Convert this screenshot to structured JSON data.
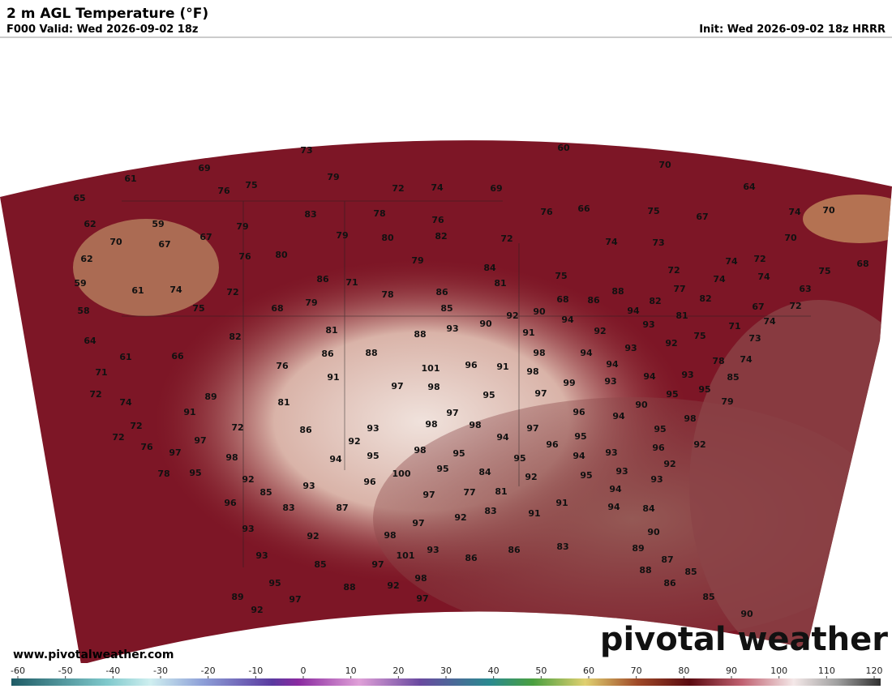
{
  "header": {
    "title": "2 m AGL Temperature (°F)",
    "valid": "F000 Valid: Wed 2026-09-02 18z",
    "init": "Init: Wed 2026-09-02 18z HRRR"
  },
  "map": {
    "values": [
      73,
      60,
      69,
      61,
      79,
      70,
      76,
      75,
      72,
      74,
      69,
      64,
      65,
      83,
      78,
      76,
      76,
      66,
      75,
      67,
      74,
      70,
      62,
      59,
      79,
      79,
      80,
      82,
      72,
      74,
      73,
      70,
      70,
      67,
      67,
      62,
      76,
      80,
      79,
      84,
      74,
      72,
      75,
      68,
      72,
      59,
      61,
      74,
      72,
      86,
      71,
      78,
      86,
      81,
      75,
      88,
      94,
      74,
      74,
      63,
      77,
      82,
      82,
      86,
      68,
      75,
      58,
      68,
      79,
      85,
      90,
      92,
      90,
      94,
      81,
      67,
      72,
      74,
      71,
      93,
      92,
      93,
      88,
      81,
      82,
      64,
      75,
      91,
      92,
      73,
      66,
      61,
      86,
      88,
      98,
      94,
      93,
      76,
      101,
      96,
      91,
      98,
      94,
      78,
      74,
      71,
      91,
      97,
      98,
      99,
      93,
      94,
      93,
      85,
      72,
      89,
      95,
      97,
      95,
      95,
      74,
      81,
      91,
      90,
      79,
      97,
      96,
      94,
      72,
      72,
      86,
      93,
      98,
      98,
      97,
      95,
      98,
      72,
      97,
      92,
      94,
      96,
      95,
      76,
      97,
      98,
      95,
      95,
      94,
      93,
      96,
      92,
      98,
      95,
      94,
      92,
      78,
      95,
      100,
      95,
      84,
      93,
      95,
      92,
      92,
      96,
      93,
      93,
      85,
      94,
      77,
      81,
      97,
      96,
      83,
      87,
      83,
      91,
      91,
      94,
      84,
      92,
      97,
      93,
      92,
      98,
      90,
      93,
      101,
      93,
      86,
      86,
      83,
      89,
      87,
      85,
      97,
      88,
      85,
      95,
      98,
      88,
      92,
      86,
      89,
      97,
      97,
      85,
      92,
      90
    ]
  },
  "colorbar": {
    "ticks": [
      -60,
      -50,
      -40,
      -30,
      -20,
      -10,
      0,
      10,
      20,
      30,
      40,
      50,
      60,
      70,
      80,
      90,
      100,
      110,
      120
    ]
  },
  "footer": {
    "url": "www.pivotalweather.com",
    "watermark": "pivotal weather"
  }
}
